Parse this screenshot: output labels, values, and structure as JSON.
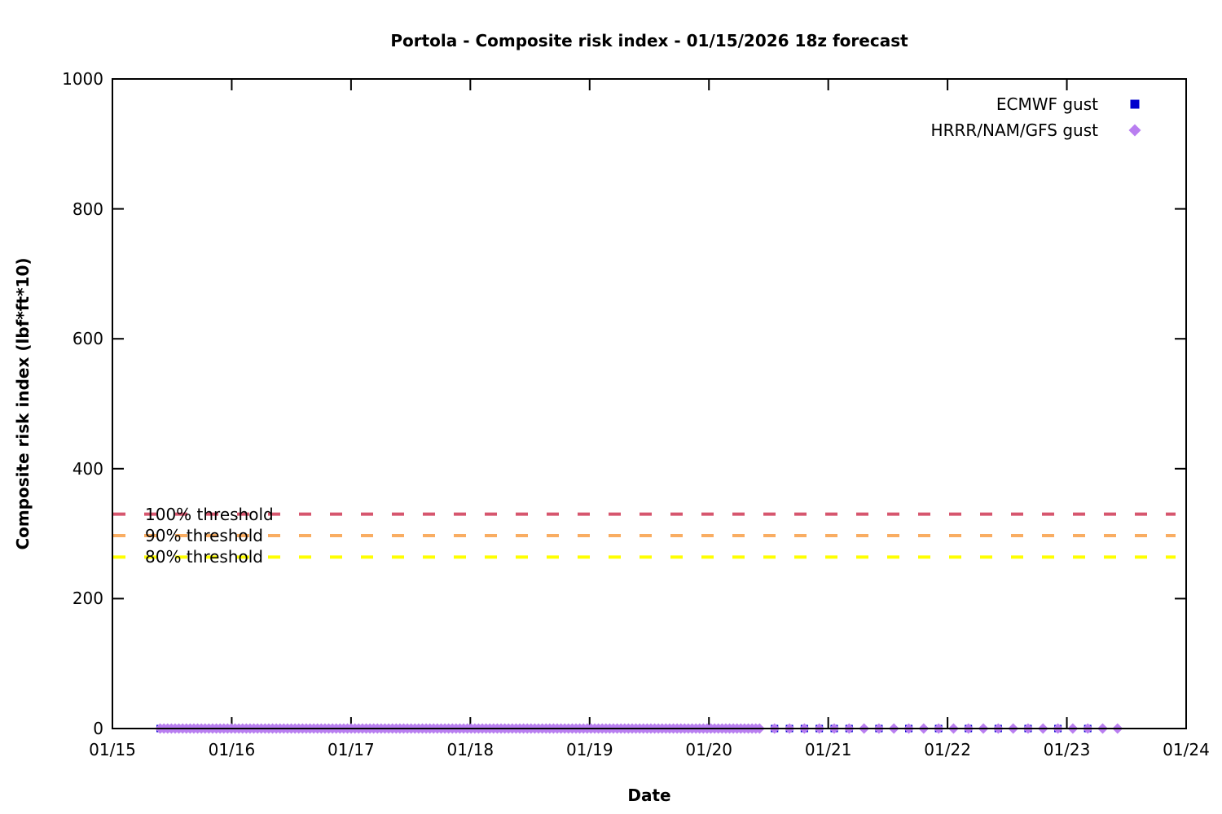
{
  "chart_data": {
    "type": "scatter",
    "title": "Portola - Composite risk index - 01/15/2026 18z forecast",
    "xlabel": "Date",
    "ylabel": "Composite risk index (lbf*ft*10)",
    "x_axis": {
      "tick_labels": [
        "01/15",
        "01/16",
        "01/17",
        "01/18",
        "01/19",
        "01/20",
        "01/21",
        "01/22",
        "01/23",
        "01/24"
      ],
      "tick_days": [
        15,
        16,
        17,
        18,
        19,
        20,
        21,
        22,
        23,
        24
      ],
      "range_days": [
        15,
        24
      ]
    },
    "y_axis": {
      "tick_labels": [
        "0",
        "200",
        "400",
        "600",
        "800",
        "1000"
      ],
      "tick_values": [
        0,
        200,
        400,
        600,
        800,
        1000
      ],
      "range": [
        0,
        1000
      ]
    },
    "grid": false,
    "legend_position": "top-right-inside",
    "thresholds": [
      {
        "label": "100% threshold",
        "value": 330,
        "color": "#d6566e",
        "style": "dashed"
      },
      {
        "label": "90% threshold",
        "value": 297,
        "color": "#f9ad62",
        "style": "dashed"
      },
      {
        "label": "80% threshold",
        "value": 264,
        "color": "#ffff00",
        "style": "dashed"
      }
    ],
    "series": [
      {
        "name": "ECMWF gust",
        "marker": "square",
        "color": "#0000cd",
        "y_value": 0,
        "segments": [
          {
            "start_day": 15.4,
            "end_day": 20.43,
            "interval_days": 0.0615
          },
          {
            "start_day": 20.55,
            "end_day": 21.175,
            "interval_days": 0.125
          },
          {
            "start_day": 21.425,
            "end_day": 23.175,
            "interval_days": 0.25
          }
        ]
      },
      {
        "name": "HRRR/NAM/GFS gust",
        "marker": "diamond",
        "color": "#b97ef0",
        "y_value": 0,
        "segments": [
          {
            "start_day": 15.4,
            "end_day": 20.43,
            "interval_days": 0.0314
          },
          {
            "start_day": 20.55,
            "end_day": 23.425,
            "interval_days": 0.125
          }
        ]
      }
    ]
  }
}
